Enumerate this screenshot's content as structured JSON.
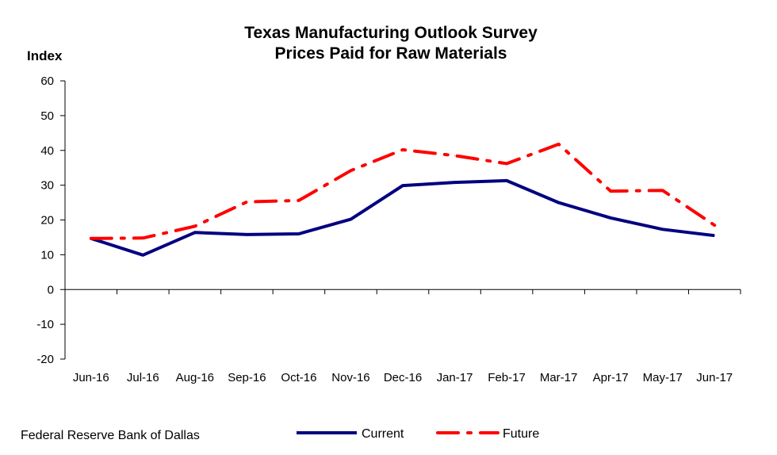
{
  "chart_data": {
    "type": "line",
    "title": "Texas Manufacturing Outlook Survey",
    "subtitle": "Prices Paid for Raw Materials",
    "ylabel": "Index",
    "xlabel": "",
    "ylim": [
      -20,
      60
    ],
    "yticks": [
      -20,
      -10,
      0,
      10,
      20,
      30,
      40,
      50,
      60
    ],
    "categories": [
      "Jun-16",
      "Jul-16",
      "Aug-16",
      "Sep-16",
      "Oct-16",
      "Nov-16",
      "Dec-16",
      "Jan-17",
      "Feb-17",
      "Mar-17",
      "Apr-17",
      "May-17",
      "Jun-17"
    ],
    "series": [
      {
        "name": "Current",
        "color": "#000080",
        "style": "solid",
        "values": [
          14.7,
          9.9,
          16.4,
          15.8,
          16.0,
          20.2,
          29.9,
          30.8,
          31.3,
          25.0,
          20.6,
          17.3,
          15.5
        ]
      },
      {
        "name": "Future",
        "color": "#ff0000",
        "style": "dash-dot",
        "values": [
          14.7,
          14.8,
          18.2,
          25.2,
          25.6,
          34.2,
          40.2,
          38.5,
          36.2,
          41.8,
          28.3,
          28.5,
          18.5
        ]
      }
    ],
    "legend_position": "bottom-center",
    "grid": false
  },
  "footer": {
    "source": "Federal Reserve Bank of Dallas"
  }
}
